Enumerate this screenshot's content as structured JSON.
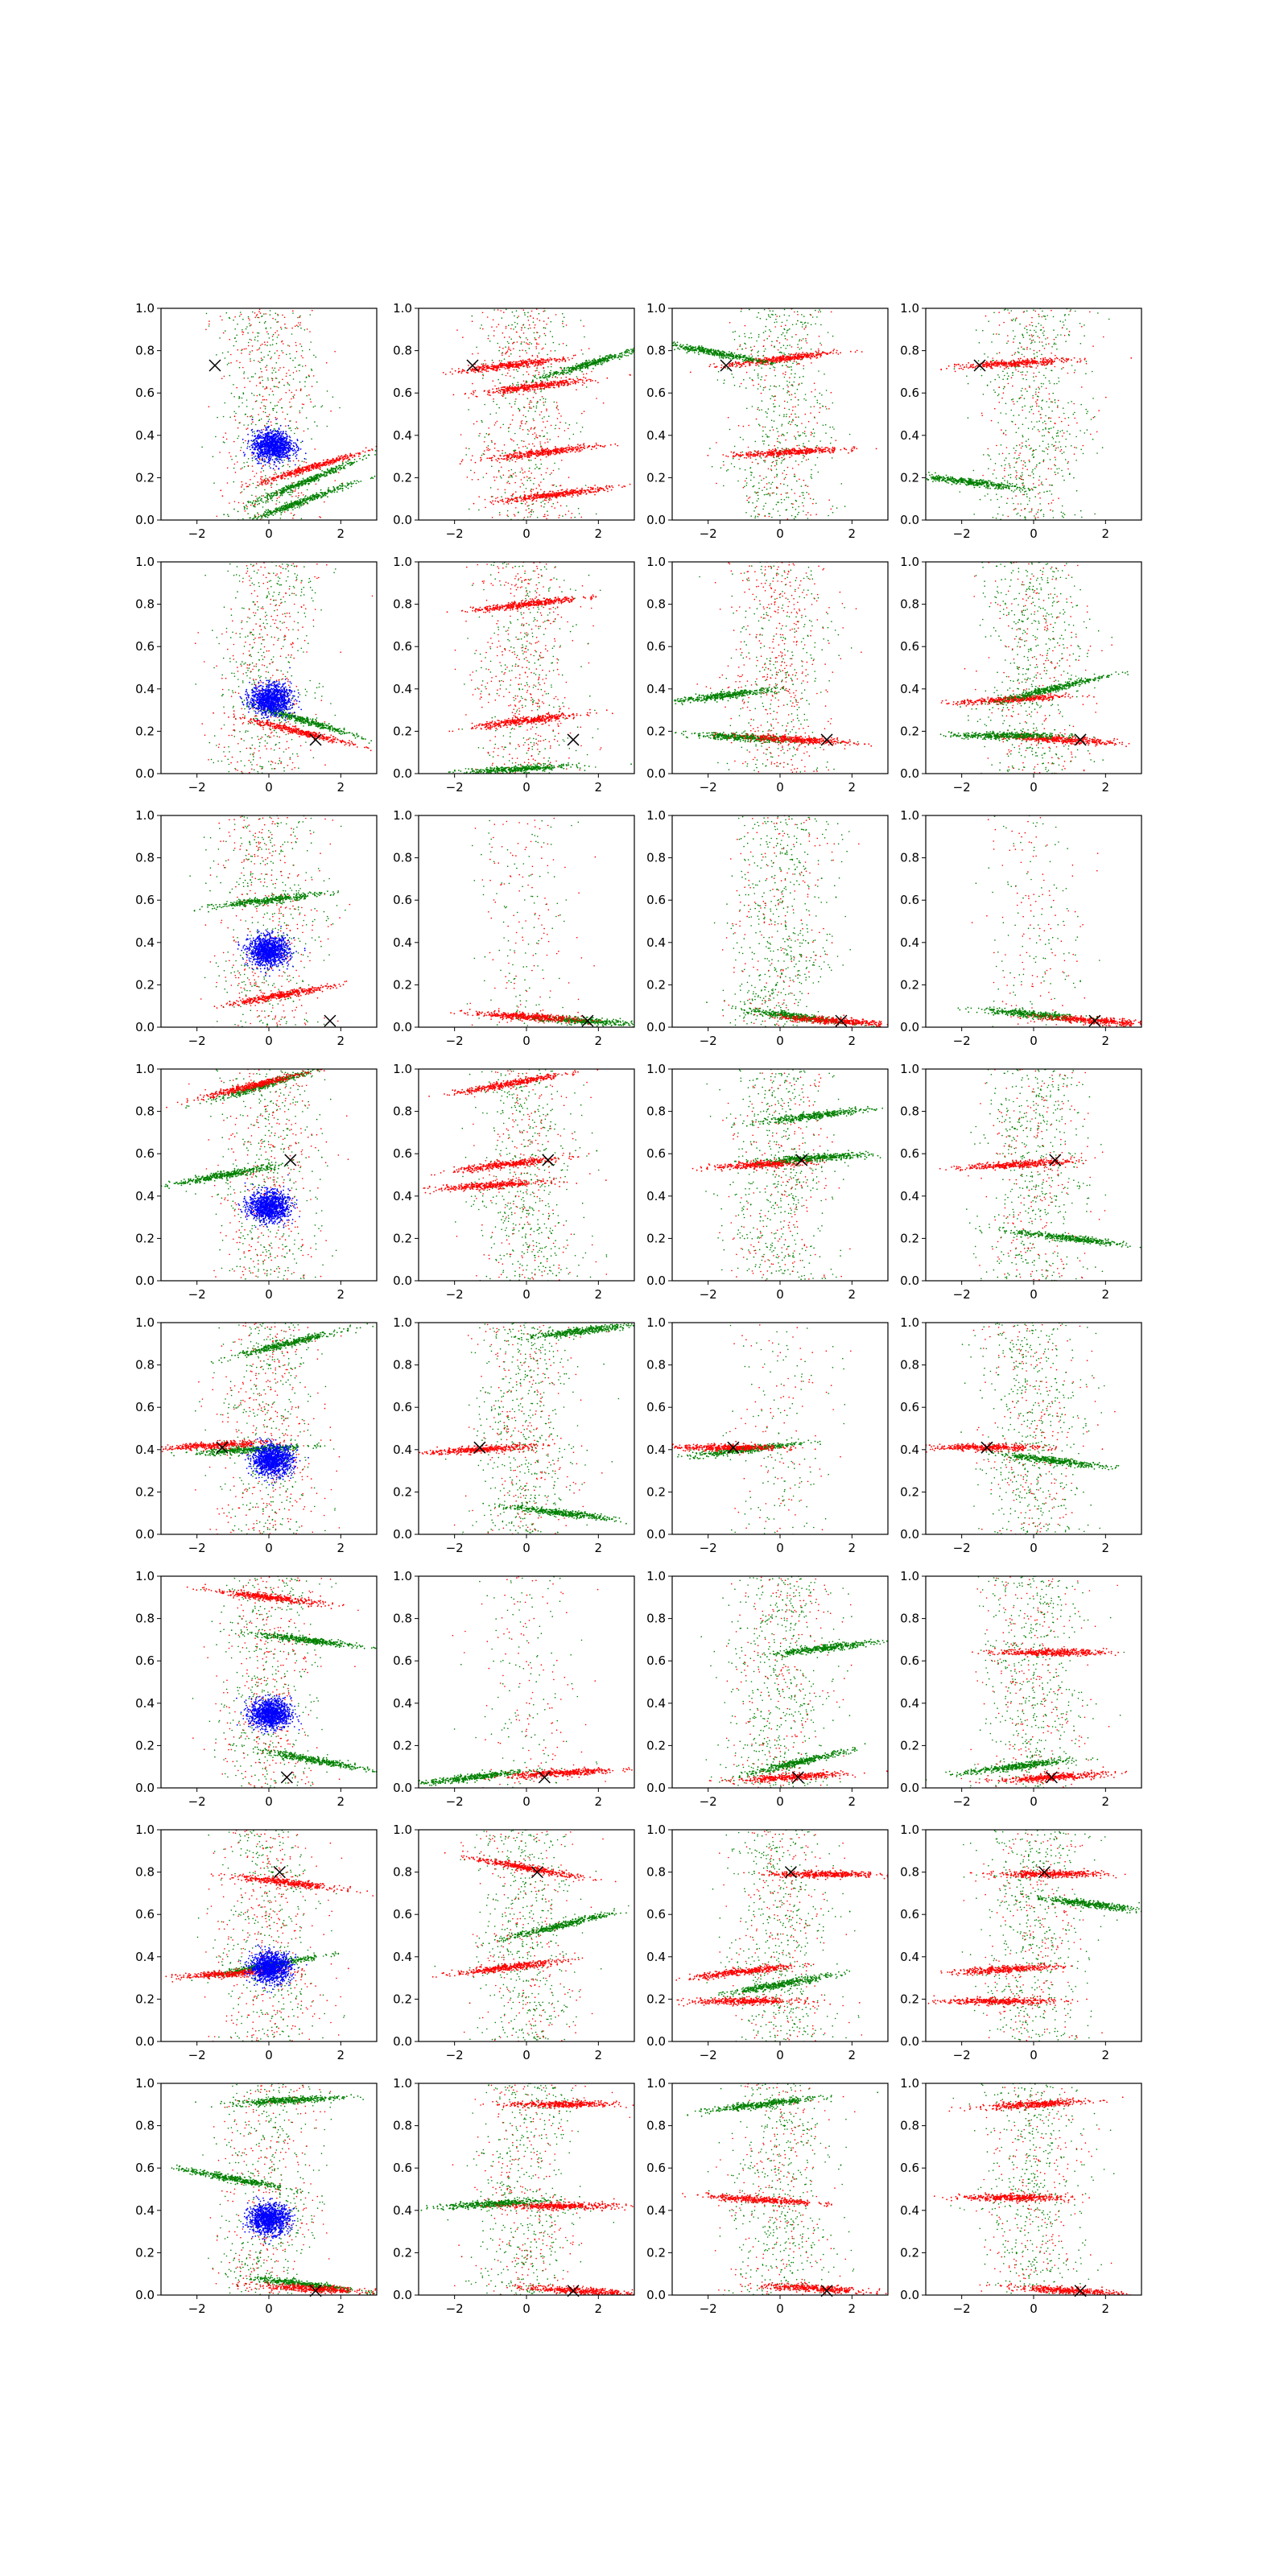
{
  "figure": {
    "rows": 8,
    "cols": 4,
    "colors": {
      "red": "#ff0000",
      "green": "#008000",
      "blue": "#0000ff",
      "marker": "#000000",
      "axis": "#000000"
    },
    "marker_symbol": "x"
  },
  "shared_axes": {
    "xlim": [
      -3,
      3
    ],
    "ylim": [
      0,
      1
    ],
    "xticks": [
      -2,
      0,
      2
    ],
    "xtick_labels": [
      "−2",
      "0",
      "2"
    ],
    "yticks": [
      0,
      0.2,
      0.4,
      0.6,
      0.8,
      1.0
    ],
    "ytick_labels": [
      "0.0",
      "0.2",
      "0.4",
      "0.6",
      "0.8",
      "1.0"
    ]
  },
  "chart_data": {
    "type": "scatter",
    "title": "",
    "xlabel": "",
    "ylabel": "",
    "xlim": [
      -3,
      3
    ],
    "ylim": [
      0,
      1
    ],
    "grid": false,
    "panels": [
      {
        "row": 0,
        "col": 0,
        "marker": [
          -1.5,
          0.73
        ],
        "blue_blob": [
          0.1,
          0.35
        ],
        "clusters": [
          {
            "color": "green",
            "cx": 1.0,
            "cy": 0.18,
            "slope": 0.07
          },
          {
            "color": "green",
            "cx": 0.8,
            "cy": 0.08,
            "slope": 0.06
          },
          {
            "color": "red",
            "cx": 1.2,
            "cy": 0.25,
            "slope": 0.05
          }
        ],
        "background": "mixed"
      },
      {
        "row": 0,
        "col": 1,
        "marker": [
          -1.5,
          0.73
        ],
        "clusters": [
          {
            "color": "red",
            "cx": -0.5,
            "cy": 0.73,
            "slope": 0.02
          },
          {
            "color": "green",
            "cx": 1.8,
            "cy": 0.74,
            "slope": 0.05
          },
          {
            "color": "red",
            "cx": 0.2,
            "cy": 0.63,
            "slope": 0.02
          },
          {
            "color": "red",
            "cx": 0.5,
            "cy": 0.32,
            "slope": 0.02
          },
          {
            "color": "red",
            "cx": 0.8,
            "cy": 0.12,
            "slope": 0.02
          }
        ],
        "background": "red"
      },
      {
        "row": 0,
        "col": 2,
        "marker": [
          -1.5,
          0.73
        ],
        "clusters": [
          {
            "color": "red",
            "cx": 0.0,
            "cy": 0.76,
            "slope": 0.02
          },
          {
            "color": "green",
            "cx": -1.8,
            "cy": 0.79,
            "slope": -0.03
          },
          {
            "color": "red",
            "cx": 0.2,
            "cy": 0.32,
            "slope": 0.01
          }
        ],
        "background": "green"
      },
      {
        "row": 0,
        "col": 3,
        "marker": [
          -1.5,
          0.73
        ],
        "clusters": [
          {
            "color": "red",
            "cx": -0.5,
            "cy": 0.74,
            "slope": 0.01
          },
          {
            "color": "green",
            "cx": -1.8,
            "cy": 0.18,
            "slope": -0.02
          }
        ],
        "background": "green"
      },
      {
        "row": 1,
        "col": 0,
        "marker": [
          1.3,
          0.16
        ],
        "blue_blob": [
          0.05,
          0.35
        ],
        "clusters": [
          {
            "color": "green",
            "cx": 1.0,
            "cy": 0.25,
            "slope": -0.05
          },
          {
            "color": "red",
            "cx": 0.8,
            "cy": 0.2,
            "slope": -0.04
          }
        ],
        "background": "mixed"
      },
      {
        "row": 1,
        "col": 1,
        "marker": [
          1.3,
          0.16
        ],
        "clusters": [
          {
            "color": "red",
            "cx": 0.0,
            "cy": 0.8,
            "slope": 0.02
          },
          {
            "color": "red",
            "cx": 0.0,
            "cy": 0.25,
            "slope": 0.02
          },
          {
            "color": "green",
            "cx": -0.3,
            "cy": 0.02,
            "slope": 0.01
          }
        ],
        "background": "red"
      },
      {
        "row": 1,
        "col": 2,
        "marker": [
          1.3,
          0.16
        ],
        "clusters": [
          {
            "color": "green",
            "cx": -1.5,
            "cy": 0.37,
            "slope": 0.02
          },
          {
            "color": "green",
            "cx": -1.0,
            "cy": 0.17,
            "slope": -0.01
          },
          {
            "color": "red",
            "cx": 0.5,
            "cy": 0.16,
            "slope": -0.01
          }
        ],
        "background": "red"
      },
      {
        "row": 1,
        "col": 3,
        "marker": [
          1.3,
          0.16
        ],
        "clusters": [
          {
            "color": "red",
            "cx": 0.8,
            "cy": 0.16,
            "slope": -0.01
          },
          {
            "color": "red",
            "cx": -0.6,
            "cy": 0.35,
            "slope": 0.01
          },
          {
            "color": "green",
            "cx": 0.5,
            "cy": 0.4,
            "slope": 0.04
          },
          {
            "color": "green",
            "cx": -0.8,
            "cy": 0.18,
            "slope": 0.0
          }
        ],
        "background": "green"
      },
      {
        "row": 2,
        "col": 0,
        "marker": [
          1.7,
          0.03
        ],
        "blue_blob": [
          0.0,
          0.36
        ],
        "clusters": [
          {
            "color": "green",
            "cx": 0.0,
            "cy": 0.6,
            "slope": 0.02
          },
          {
            "color": "red",
            "cx": 0.3,
            "cy": 0.15,
            "slope": 0.03
          }
        ],
        "background": "mixed"
      },
      {
        "row": 2,
        "col": 1,
        "marker": [
          1.7,
          0.03
        ],
        "clusters": [
          {
            "color": "green",
            "cx": 1.5,
            "cy": 0.03,
            "slope": -0.01
          },
          {
            "color": "red",
            "cx": 0.0,
            "cy": 0.05,
            "slope": -0.01
          }
        ],
        "background": "sparse"
      },
      {
        "row": 2,
        "col": 2,
        "marker": [
          1.7,
          0.03
        ],
        "clusters": [
          {
            "color": "green",
            "cx": 0.5,
            "cy": 0.05,
            "slope": -0.02
          },
          {
            "color": "red",
            "cx": 1.5,
            "cy": 0.03,
            "slope": -0.01
          }
        ],
        "background": "green"
      },
      {
        "row": 2,
        "col": 3,
        "marker": [
          1.7,
          0.03
        ],
        "clusters": [
          {
            "color": "green",
            "cx": 0.0,
            "cy": 0.06,
            "slope": -0.015
          },
          {
            "color": "red",
            "cx": 1.7,
            "cy": 0.03,
            "slope": -0.01
          }
        ],
        "background": "sparse"
      },
      {
        "row": 3,
        "col": 0,
        "marker": [
          0.6,
          0.57
        ],
        "blue_blob": [
          0.0,
          0.35
        ],
        "clusters": [
          {
            "color": "green",
            "cx": -1.2,
            "cy": 0.5,
            "slope": 0.03
          },
          {
            "color": "green",
            "cx": 0.0,
            "cy": 0.93,
            "slope": 0.05
          },
          {
            "color": "red",
            "cx": -0.5,
            "cy": 0.92,
            "slope": 0.04
          }
        ],
        "background": "mixed"
      },
      {
        "row": 3,
        "col": 1,
        "marker": [
          0.6,
          0.57
        ],
        "clusters": [
          {
            "color": "red",
            "cx": -0.5,
            "cy": 0.93,
            "slope": 0.03
          },
          {
            "color": "red",
            "cx": -0.5,
            "cy": 0.55,
            "slope": 0.02
          },
          {
            "color": "red",
            "cx": -1.0,
            "cy": 0.45,
            "slope": 0.01
          }
        ],
        "background": "green"
      },
      {
        "row": 3,
        "col": 2,
        "marker": [
          0.6,
          0.57
        ],
        "clusters": [
          {
            "color": "red",
            "cx": -0.4,
            "cy": 0.55,
            "slope": 0.01
          },
          {
            "color": "green",
            "cx": 1.0,
            "cy": 0.58,
            "slope": 0.01
          },
          {
            "color": "green",
            "cx": 1.0,
            "cy": 0.78,
            "slope": 0.02
          }
        ],
        "background": "green"
      },
      {
        "row": 3,
        "col": 3,
        "marker": [
          0.6,
          0.57
        ],
        "clusters": [
          {
            "color": "red",
            "cx": -0.4,
            "cy": 0.55,
            "slope": 0.01
          },
          {
            "color": "green",
            "cx": 1.0,
            "cy": 0.2,
            "slope": -0.02
          }
        ],
        "background": "green"
      },
      {
        "row": 4,
        "col": 0,
        "marker": [
          -1.3,
          0.41
        ],
        "blue_blob": [
          0.1,
          0.35
        ],
        "clusters": [
          {
            "color": "green",
            "cx": -0.5,
            "cy": 0.4,
            "slope": 0.01
          },
          {
            "color": "green",
            "cx": 0.5,
            "cy": 0.9,
            "slope": 0.04
          },
          {
            "color": "red",
            "cx": -1.5,
            "cy": 0.42,
            "slope": 0.01
          }
        ],
        "background": "mixed"
      },
      {
        "row": 4,
        "col": 1,
        "marker": [
          -1.3,
          0.41
        ],
        "clusters": [
          {
            "color": "red",
            "cx": -1.3,
            "cy": 0.4,
            "slope": 0.01
          },
          {
            "color": "green",
            "cx": 1.5,
            "cy": 0.96,
            "slope": 0.02
          },
          {
            "color": "green",
            "cx": 1.0,
            "cy": 0.1,
            "slope": -0.02
          }
        ],
        "background": "green"
      },
      {
        "row": 4,
        "col": 2,
        "marker": [
          -1.3,
          0.41
        ],
        "clusters": [
          {
            "color": "green",
            "cx": -1.0,
            "cy": 0.4,
            "slope": 0.02
          },
          {
            "color": "red",
            "cx": -1.5,
            "cy": 0.41,
            "slope": 0.0
          }
        ],
        "background": "sparse"
      },
      {
        "row": 4,
        "col": 3,
        "marker": [
          -1.3,
          0.41
        ],
        "clusters": [
          {
            "color": "red",
            "cx": -1.3,
            "cy": 0.41,
            "slope": 0.0
          },
          {
            "color": "green",
            "cx": 0.5,
            "cy": 0.35,
            "slope": -0.02
          }
        ],
        "background": "green"
      },
      {
        "row": 5,
        "col": 0,
        "marker": [
          0.5,
          0.05
        ],
        "blue_blob": [
          0.05,
          0.35
        ],
        "clusters": [
          {
            "color": "green",
            "cx": 1.3,
            "cy": 0.13,
            "slope": -0.03
          },
          {
            "color": "green",
            "cx": 1.0,
            "cy": 0.7,
            "slope": -0.02
          },
          {
            "color": "red",
            "cx": 0.0,
            "cy": 0.9,
            "slope": -0.02
          }
        ],
        "background": "mixed"
      },
      {
        "row": 5,
        "col": 1,
        "marker": [
          0.5,
          0.05
        ],
        "clusters": [
          {
            "color": "green",
            "cx": -1.5,
            "cy": 0.05,
            "slope": 0.02
          },
          {
            "color": "red",
            "cx": 1.0,
            "cy": 0.07,
            "slope": 0.01
          }
        ],
        "background": "sparse"
      },
      {
        "row": 5,
        "col": 2,
        "marker": [
          0.5,
          0.05
        ],
        "clusters": [
          {
            "color": "green",
            "cx": 1.2,
            "cy": 0.66,
            "slope": 0.02
          },
          {
            "color": "green",
            "cx": 0.5,
            "cy": 0.12,
            "slope": 0.04
          },
          {
            "color": "red",
            "cx": 0.3,
            "cy": 0.05,
            "slope": 0.01
          }
        ],
        "background": "green"
      },
      {
        "row": 5,
        "col": 3,
        "marker": [
          0.5,
          0.05
        ],
        "clusters": [
          {
            "color": "red",
            "cx": 0.5,
            "cy": 0.05,
            "slope": 0.01
          },
          {
            "color": "red",
            "cx": 0.5,
            "cy": 0.64,
            "slope": 0.0
          },
          {
            "color": "green",
            "cx": -0.5,
            "cy": 0.1,
            "slope": 0.02
          }
        ],
        "background": "green"
      },
      {
        "row": 6,
        "col": 0,
        "marker": [
          0.3,
          0.8
        ],
        "blue_blob": [
          0.05,
          0.35
        ],
        "clusters": [
          {
            "color": "green",
            "cx": 0.0,
            "cy": 0.36,
            "slope": 0.03
          },
          {
            "color": "red",
            "cx": 0.5,
            "cy": 0.75,
            "slope": -0.02
          },
          {
            "color": "red",
            "cx": -1.0,
            "cy": 0.32,
            "slope": 0.01
          }
        ],
        "background": "mixed"
      },
      {
        "row": 6,
        "col": 1,
        "marker": [
          0.3,
          0.8
        ],
        "clusters": [
          {
            "color": "red",
            "cx": 0.0,
            "cy": 0.82,
            "slope": -0.03
          },
          {
            "color": "red",
            "cx": -0.5,
            "cy": 0.35,
            "slope": 0.02
          },
          {
            "color": "green",
            "cx": 1.0,
            "cy": 0.55,
            "slope": 0.04
          }
        ],
        "background": "green"
      },
      {
        "row": 6,
        "col": 2,
        "marker": [
          0.3,
          0.8
        ],
        "clusters": [
          {
            "color": "red",
            "cx": 1.2,
            "cy": 0.79,
            "slope": 0.0
          },
          {
            "color": "red",
            "cx": -1.0,
            "cy": 0.33,
            "slope": 0.02
          },
          {
            "color": "red",
            "cx": -1.0,
            "cy": 0.19,
            "slope": 0.0
          },
          {
            "color": "green",
            "cx": 0.0,
            "cy": 0.27,
            "slope": 0.03
          }
        ],
        "background": "green"
      },
      {
        "row": 6,
        "col": 3,
        "marker": [
          0.3,
          0.8
        ],
        "clusters": [
          {
            "color": "red",
            "cx": 0.5,
            "cy": 0.79,
            "slope": 0.0
          },
          {
            "color": "red",
            "cx": -0.8,
            "cy": 0.34,
            "slope": 0.01
          },
          {
            "color": "red",
            "cx": -1.0,
            "cy": 0.19,
            "slope": 0.0
          },
          {
            "color": "green",
            "cx": 1.5,
            "cy": 0.65,
            "slope": -0.02
          }
        ],
        "background": "green"
      },
      {
        "row": 7,
        "col": 0,
        "marker": [
          1.3,
          0.02
        ],
        "blue_blob": [
          0.0,
          0.36
        ],
        "clusters": [
          {
            "color": "green",
            "cx": 0.5,
            "cy": 0.92,
            "slope": 0.01
          },
          {
            "color": "green",
            "cx": -1.0,
            "cy": 0.55,
            "slope": -0.03
          },
          {
            "color": "green",
            "cx": 1.0,
            "cy": 0.05,
            "slope": -0.02
          },
          {
            "color": "red",
            "cx": 1.2,
            "cy": 0.03,
            "slope": -0.01
          }
        ],
        "background": "mixed"
      },
      {
        "row": 7,
        "col": 1,
        "marker": [
          1.3,
          0.02
        ],
        "clusters": [
          {
            "color": "green",
            "cx": -1.0,
            "cy": 0.43,
            "slope": 0.01
          },
          {
            "color": "red",
            "cx": 1.0,
            "cy": 0.42,
            "slope": 0.0
          },
          {
            "color": "red",
            "cx": 1.5,
            "cy": 0.02,
            "slope": -0.01
          },
          {
            "color": "red",
            "cx": 1.0,
            "cy": 0.9,
            "slope": 0.0
          }
        ],
        "background": "green"
      },
      {
        "row": 7,
        "col": 2,
        "marker": [
          1.3,
          0.02
        ],
        "clusters": [
          {
            "color": "red",
            "cx": -0.5,
            "cy": 0.45,
            "slope": -0.01
          },
          {
            "color": "red",
            "cx": 1.0,
            "cy": 0.03,
            "slope": -0.01
          },
          {
            "color": "green",
            "cx": -0.5,
            "cy": 0.9,
            "slope": 0.02
          }
        ],
        "background": "green"
      },
      {
        "row": 7,
        "col": 3,
        "marker": [
          1.3,
          0.02
        ],
        "clusters": [
          {
            "color": "red",
            "cx": -0.5,
            "cy": 0.46,
            "slope": 0.0
          },
          {
            "color": "red",
            "cx": 1.0,
            "cy": 0.02,
            "slope": -0.01
          },
          {
            "color": "red",
            "cx": 0.0,
            "cy": 0.9,
            "slope": 0.01
          }
        ],
        "background": "green"
      }
    ]
  }
}
